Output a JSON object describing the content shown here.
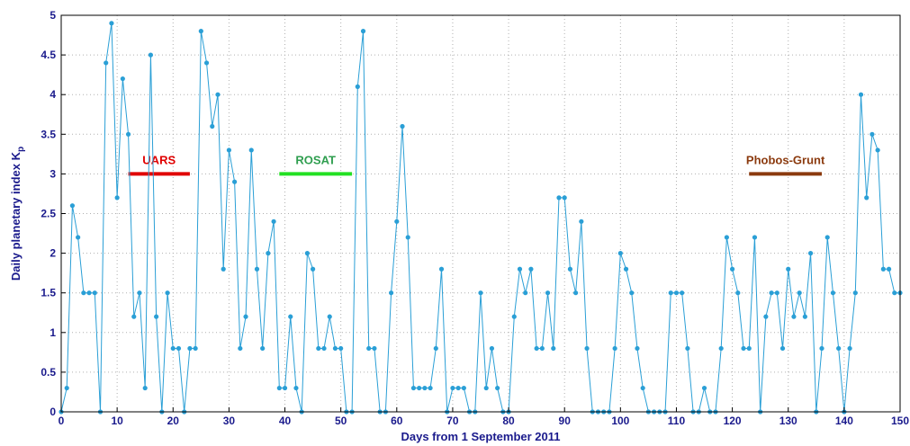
{
  "chart_data": {
    "type": "line",
    "xlabel": "Days from 1 September 2011",
    "ylabel_main": "Daily planetary index K",
    "ylabel_sub": "p",
    "xlim": [
      0,
      150
    ],
    "ylim": [
      0,
      5
    ],
    "xticks": [
      "0",
      "10",
      "20",
      "30",
      "40",
      "50",
      "60",
      "70",
      "80",
      "90",
      "100",
      "110",
      "120",
      "130",
      "140",
      "150"
    ],
    "yticks": [
      "0",
      "0.5",
      "1",
      "1.5",
      "2",
      "2.5",
      "3",
      "3.5",
      "4",
      "4.5",
      "5"
    ],
    "grid": true,
    "colors": {
      "series": "#2a9fd6",
      "axis_text": "#1a1a8c",
      "grid": "#b0b0b0"
    },
    "series": [
      {
        "values": [
          0,
          0.3,
          2.6,
          2.2,
          1.5,
          1.5,
          1.5,
          0,
          4.4,
          4.9,
          2.7,
          4.2,
          3.5,
          1.2,
          1.5,
          0.3,
          4.5,
          1.2,
          0,
          1.5,
          0.8,
          0.8,
          0,
          0.8,
          0.8,
          4.8,
          4.4,
          3.6,
          4.0,
          1.8,
          3.3,
          2.9,
          0.8,
          1.2,
          3.3,
          1.8,
          0.8,
          2.0,
          2.4,
          0.3,
          0.3,
          1.2,
          0.3,
          0,
          2.0,
          1.8,
          0.8,
          0.8,
          1.2,
          0.8,
          0.8,
          0,
          0,
          4.1,
          4.8,
          0.8,
          0.8,
          0,
          0,
          1.5,
          2.4,
          3.6,
          2.2,
          0.3,
          0.3,
          0.3,
          0.3,
          0.8,
          1.8,
          0,
          0.3,
          0.3,
          0.3,
          0,
          0,
          1.5,
          0.3,
          0.8,
          0.3,
          0,
          0,
          1.2,
          1.8,
          1.5,
          1.8,
          0.8,
          0.8,
          1.5,
          0.8,
          2.7,
          2.7,
          1.8,
          1.5,
          2.4,
          0.8,
          0,
          0,
          0,
          0,
          0.8,
          2.0,
          1.8,
          1.5,
          0.8,
          0.3,
          0,
          0,
          0,
          0,
          1.5,
          1.5,
          1.5,
          0.8,
          0,
          0,
          0.3,
          0,
          0,
          0.8,
          2.2,
          1.8,
          1.5,
          0.8,
          0.8,
          2.2,
          0,
          1.2,
          1.5,
          1.5,
          0.8,
          1.8,
          1.2,
          1.5,
          1.2,
          2.0,
          0,
          0.8,
          2.2,
          1.5,
          0.8,
          0,
          0.8,
          1.5,
          4.0,
          2.7,
          3.5,
          3.3,
          1.8,
          1.8,
          1.5,
          1.5
        ]
      }
    ],
    "annotations": [
      {
        "label": "UARS",
        "x_start": 12,
        "x_end": 23,
        "y": 3.0,
        "color": "#e00000"
      },
      {
        "label": "ROSAT",
        "x_start": 39,
        "x_end": 52,
        "y": 3.0,
        "color": "#2f9e4f",
        "line_color": "#22e022"
      },
      {
        "label": "Phobos-Grunt",
        "x_start": 123,
        "x_end": 136,
        "y": 3.0,
        "color": "#8b3a0e"
      }
    ]
  }
}
